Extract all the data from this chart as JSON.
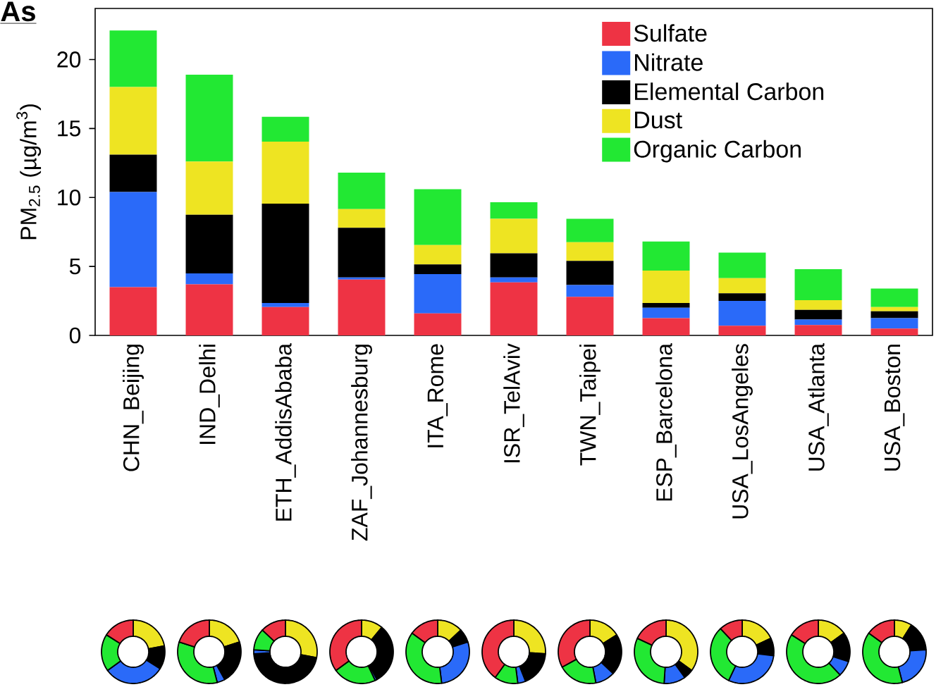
{
  "chart_data": [
    {
      "type": "bar",
      "stacked": true,
      "ylabel": "PM$_{2.5}$ (µg/m$^{3}$)",
      "annotations": [
        "As"
      ],
      "categories": [
        "CHN_Beijing",
        "IND_Delhi",
        "ETH_AddisAbaba",
        "ZAF_Johannesburg",
        "ITA_Rome",
        "ISR_TelAviv",
        "TWN_Taipei",
        "ESP_Barcelona",
        "USA_LosAngeles",
        "USA_Atlanta",
        "USA_Boston"
      ],
      "series": [
        {
          "name": "Sulfate",
          "color": "#ee3344",
          "values": [
            3.5,
            3.7,
            2.05,
            4.05,
            1.6,
            3.85,
            2.8,
            1.25,
            0.7,
            0.75,
            0.5
          ]
        },
        {
          "name": "Nitrate",
          "color": "#2a6af9",
          "values": [
            6.9,
            0.8,
            0.3,
            0.15,
            2.85,
            0.35,
            0.85,
            0.75,
            1.8,
            0.4,
            0.75
          ]
        },
        {
          "name": "Elemental Carbon",
          "color": "#000000",
          "values": [
            2.7,
            4.25,
            7.2,
            3.6,
            0.7,
            1.75,
            1.75,
            0.35,
            0.55,
            0.7,
            0.5
          ]
        },
        {
          "name": "Dust",
          "color": "#eee422",
          "values": [
            4.9,
            3.85,
            4.5,
            1.35,
            1.4,
            2.5,
            1.35,
            2.35,
            1.1,
            0.7,
            0.3
          ]
        },
        {
          "name": "Organic Carbon",
          "color": "#22e833",
          "values": [
            4.1,
            6.3,
            1.8,
            2.65,
            4.05,
            1.2,
            1.7,
            2.1,
            1.85,
            2.25,
            1.35
          ]
        }
      ],
      "ylim": [
        0,
        23.7
      ],
      "yticks": [
        0,
        5,
        10,
        15,
        20
      ],
      "legend": "top right",
      "grid": false
    },
    {
      "type": "donut",
      "categories": [
        null,
        null,
        null,
        null,
        null
      ],
      "colors": [
        "#eee422",
        "#000000",
        "#2a6af9",
        "#22e833",
        "#ee3344"
      ],
      "values": [
        22,
        12,
        31,
        19,
        16
      ]
    },
    {
      "type": "donut",
      "categories": [
        null,
        null,
        null,
        null,
        null
      ],
      "colors": [
        "#eee422",
        "#000000",
        "#2a6af9",
        "#22e833",
        "#ee3344"
      ],
      "values": [
        20,
        22,
        4,
        34,
        20
      ]
    },
    {
      "type": "donut",
      "categories": [
        null,
        null,
        null,
        null,
        null
      ],
      "colors": [
        "#eee422",
        "#000000",
        "#2a6af9",
        "#22e833",
        "#ee3344"
      ],
      "values": [
        28,
        46,
        2,
        11,
        13
      ]
    },
    {
      "type": "donut",
      "categories": [
        null,
        null,
        null,
        null,
        null
      ],
      "colors": [
        "#eee422",
        "#000000",
        "#2a6af9",
        "#22e833",
        "#ee3344"
      ],
      "values": [
        11,
        31,
        1,
        22,
        35
      ]
    },
    {
      "type": "donut",
      "categories": [
        null,
        null,
        null,
        null,
        null
      ],
      "colors": [
        "#eee422",
        "#000000",
        "#2a6af9",
        "#22e833",
        "#ee3344"
      ],
      "values": [
        13,
        7,
        28,
        37,
        15
      ]
    },
    {
      "type": "donut",
      "categories": [
        null,
        null,
        null,
        null,
        null
      ],
      "colors": [
        "#eee422",
        "#000000",
        "#2a6af9",
        "#22e833",
        "#ee3344"
      ],
      "values": [
        26,
        18,
        4,
        12,
        40
      ]
    },
    {
      "type": "donut",
      "categories": [
        null,
        null,
        null,
        null,
        null
      ],
      "colors": [
        "#eee422",
        "#000000",
        "#2a6af9",
        "#22e833",
        "#ee3344"
      ],
      "values": [
        16,
        21,
        10,
        20,
        33
      ]
    },
    {
      "type": "donut",
      "categories": [
        null,
        null,
        null,
        null,
        null
      ],
      "colors": [
        "#eee422",
        "#000000",
        "#2a6af9",
        "#22e833",
        "#ee3344"
      ],
      "values": [
        35,
        5,
        11,
        31,
        18
      ]
    },
    {
      "type": "donut",
      "categories": [
        null,
        null,
        null,
        null,
        null
      ],
      "colors": [
        "#eee422",
        "#000000",
        "#2a6af9",
        "#22e833",
        "#ee3344"
      ],
      "values": [
        18,
        9,
        30,
        31,
        12
      ]
    },
    {
      "type": "donut",
      "categories": [
        null,
        null,
        null,
        null,
        null
      ],
      "colors": [
        "#eee422",
        "#000000",
        "#2a6af9",
        "#22e833",
        "#ee3344"
      ],
      "values": [
        15,
        15,
        8,
        46,
        16
      ]
    },
    {
      "type": "donut",
      "categories": [
        null,
        null,
        null,
        null,
        null
      ],
      "colors": [
        "#eee422",
        "#000000",
        "#2a6af9",
        "#22e833",
        "#ee3344"
      ],
      "values": [
        9,
        15,
        22,
        39,
        15
      ]
    }
  ]
}
